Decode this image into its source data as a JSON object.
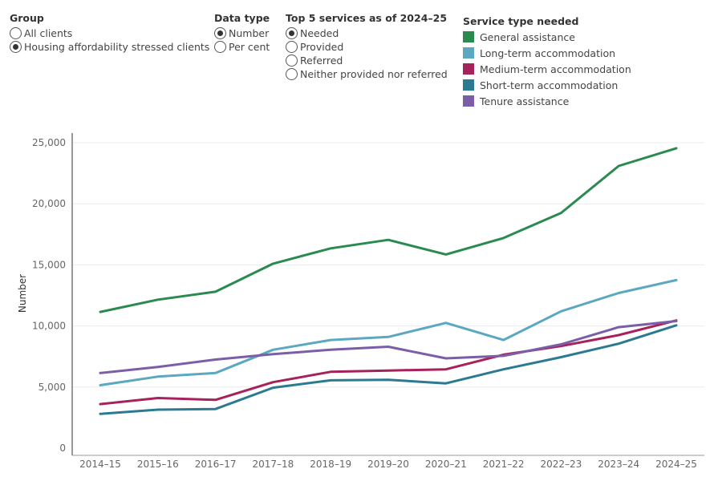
{
  "controls": {
    "group": {
      "title": "Group",
      "options": [
        {
          "label": "All clients",
          "selected": false
        },
        {
          "label": "Housing affordability stressed clients",
          "selected": true
        }
      ]
    },
    "data_type": {
      "title": "Data type",
      "options": [
        {
          "label": "Number",
          "selected": true
        },
        {
          "label": "Per cent",
          "selected": false
        }
      ]
    },
    "top5": {
      "title": "Top 5 services as of 2024–25",
      "options": [
        {
          "label": "Needed",
          "selected": true
        },
        {
          "label": "Provided",
          "selected": false
        },
        {
          "label": "Referred",
          "selected": false
        },
        {
          "label": "Neither provided nor referred",
          "selected": false
        }
      ]
    }
  },
  "legend": {
    "title": "Service type needed",
    "items": [
      {
        "label": "General assistance",
        "color": "#2a8a4f"
      },
      {
        "label": "Long-term accommodation",
        "color": "#5ba8c0"
      },
      {
        "label": "Medium-term accommodation",
        "color": "#a7215a"
      },
      {
        "label": "Short-term accommodation",
        "color": "#2b7a92"
      },
      {
        "label": "Tenure assistance",
        "color": "#7b5ea7"
      }
    ]
  },
  "chart_data": {
    "type": "line",
    "ylabel": "Number",
    "xlabel": "",
    "ylim": [
      0,
      25000
    ],
    "yticks": [
      0,
      5000,
      10000,
      15000,
      20000,
      25000
    ],
    "ytick_labels": [
      "0",
      "5,000",
      "10,000",
      "15,000",
      "20,000",
      "25,000"
    ],
    "grid": true,
    "categories": [
      "2014–15",
      "2015–16",
      "2016–17",
      "2017–18",
      "2018–19",
      "2019–20",
      "2020–21",
      "2021–22",
      "2022–23",
      "2023–24",
      "2024–25"
    ],
    "series": [
      {
        "name": "General assistance",
        "color": "#2a8a4f",
        "values": [
          11150,
          12150,
          12800,
          15100,
          16350,
          17050,
          15850,
          17200,
          19250,
          23100,
          24550
        ]
      },
      {
        "name": "Long-term accommodation",
        "color": "#5ba8c0",
        "values": [
          5150,
          5850,
          6150,
          8050,
          8850,
          9100,
          10250,
          8850,
          11200,
          12700,
          13750
        ]
      },
      {
        "name": "Medium-term accommodation",
        "color": "#a7215a",
        "values": [
          3600,
          4100,
          3950,
          5400,
          6250,
          6350,
          6450,
          7650,
          8350,
          9250,
          10450
        ]
      },
      {
        "name": "Short-term accommodation",
        "color": "#2b7a92",
        "values": [
          2800,
          3150,
          3200,
          4950,
          5550,
          5600,
          5300,
          6450,
          7450,
          8550,
          10050
        ]
      },
      {
        "name": "Tenure assistance",
        "color": "#7b5ea7",
        "values": [
          6150,
          6650,
          7250,
          7700,
          8050,
          8300,
          7350,
          7550,
          8500,
          9900,
          10400
        ]
      }
    ]
  }
}
